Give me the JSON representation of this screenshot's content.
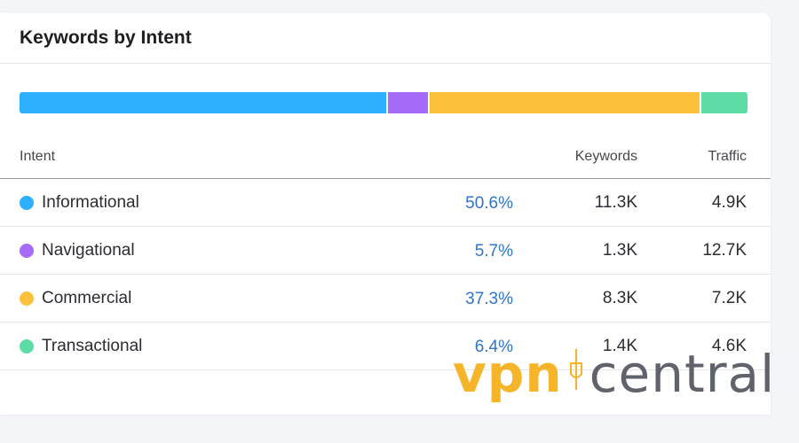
{
  "card": {
    "title": "Keywords by Intent"
  },
  "bar": {
    "segments": [
      {
        "intent": "Informational",
        "share": 50.6,
        "color": "#2db1ff"
      },
      {
        "intent": "Navigational",
        "share": 5.7,
        "color": "#a66cf7"
      },
      {
        "intent": "Commercial",
        "share": 37.3,
        "color": "#fdc13b"
      },
      {
        "intent": "Transactional",
        "share": 6.4,
        "color": "#5ddca5"
      }
    ]
  },
  "table": {
    "headers": {
      "intent": "Intent",
      "keywords": "Keywords",
      "traffic": "Traffic"
    },
    "rows": [
      {
        "intent": "Informational",
        "percent": "50.6%",
        "keywords": "11.3K",
        "traffic": "4.9K",
        "color": "#2db1ff"
      },
      {
        "intent": "Navigational",
        "percent": "5.7%",
        "keywords": "1.3K",
        "traffic": "12.7K",
        "color": "#a66cf7"
      },
      {
        "intent": "Commercial",
        "percent": "37.3%",
        "keywords": "8.3K",
        "traffic": "7.2K",
        "color": "#fdc13b"
      },
      {
        "intent": "Transactional",
        "percent": "6.4%",
        "keywords": "1.4K",
        "traffic": "4.6K",
        "color": "#5ddca5"
      }
    ]
  },
  "watermark": {
    "part1": "vpn",
    "part2": "central"
  }
}
